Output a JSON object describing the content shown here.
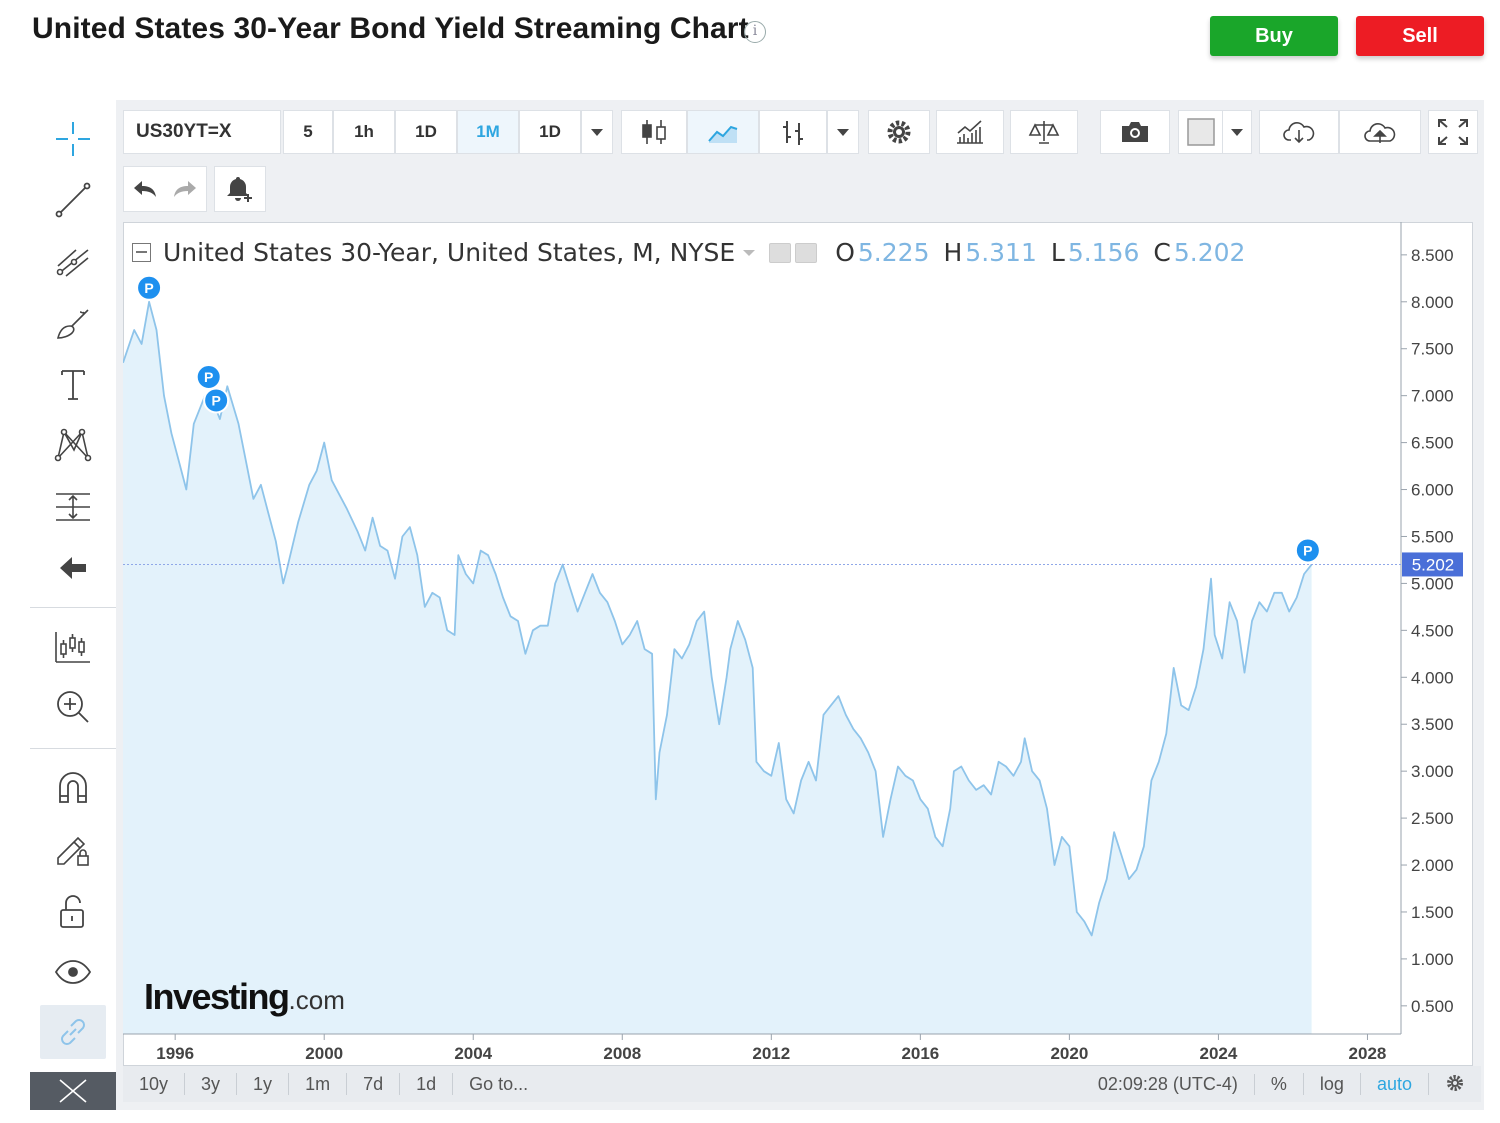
{
  "header": {
    "title": "United States 30-Year Bond Yield Streaming Chart",
    "info_icon": "i",
    "buy_label": "Buy",
    "sell_label": "Sell"
  },
  "colors": {
    "buy": "#1aa62a",
    "sell": "#ed1c24",
    "accent": "#2ea6e0",
    "series_line": "#8ec4ea",
    "series_fill": "#e3f2fb",
    "price_badge": "#4a6fd8",
    "marker": "#1e90ef"
  },
  "left_tools": [
    "crosshair-icon",
    "trend-line-icon",
    "fib-icon",
    "brush-icon",
    "text-icon",
    "pattern-icon",
    "measure-icon",
    "arrow-left-icon",
    "indicators-icon",
    "zoom-in-icon",
    "magnet-icon",
    "lock-drawing-icon",
    "unlock-icon",
    "eye-icon",
    "link-icon"
  ],
  "toolbar": {
    "symbol": "US30YT=X",
    "intervals": [
      "5",
      "1h",
      "1D",
      "1M",
      "1D"
    ],
    "active_interval": "1M"
  },
  "legend": {
    "name": "United States 30-Year, United States, M, NYSE",
    "o_label": "O",
    "o_value": "5.225",
    "h_label": "H",
    "h_value": "5.311",
    "l_label": "L",
    "l_value": "5.156",
    "c_label": "C",
    "c_value": "5.202"
  },
  "watermark": {
    "brand": "Investing",
    "domain": ".com"
  },
  "bottom_bar": {
    "ranges": [
      "10y",
      "3y",
      "1y",
      "1m",
      "7d",
      "1d"
    ],
    "goto": "Go to...",
    "time": "02:09:28 (UTC-4)",
    "percent": "%",
    "log": "log",
    "auto": "auto"
  },
  "chart_data": {
    "type": "area",
    "series": [
      {
        "name": "United States 30-Year",
        "points": [
          [
            1994.6,
            7.35
          ],
          [
            1994.9,
            7.7
          ],
          [
            1995.1,
            7.55
          ],
          [
            1995.3,
            8.0
          ],
          [
            1995.5,
            7.7
          ],
          [
            1995.7,
            7.0
          ],
          [
            1995.9,
            6.6
          ],
          [
            1996.1,
            6.3
          ],
          [
            1996.3,
            6.0
          ],
          [
            1996.5,
            6.7
          ],
          [
            1996.8,
            7.0
          ],
          [
            1997.0,
            6.95
          ],
          [
            1997.2,
            6.75
          ],
          [
            1997.4,
            7.1
          ],
          [
            1997.7,
            6.7
          ],
          [
            1997.9,
            6.3
          ],
          [
            1998.1,
            5.9
          ],
          [
            1998.3,
            6.05
          ],
          [
            1998.5,
            5.75
          ],
          [
            1998.7,
            5.45
          ],
          [
            1998.9,
            5.0
          ],
          [
            1999.0,
            5.15
          ],
          [
            1999.3,
            5.65
          ],
          [
            1999.6,
            6.05
          ],
          [
            1999.8,
            6.2
          ],
          [
            2000.0,
            6.5
          ],
          [
            2000.2,
            6.1
          ],
          [
            2000.4,
            5.95
          ],
          [
            2000.6,
            5.8
          ],
          [
            2000.9,
            5.55
          ],
          [
            2001.1,
            5.35
          ],
          [
            2001.3,
            5.7
          ],
          [
            2001.5,
            5.4
          ],
          [
            2001.7,
            5.35
          ],
          [
            2001.9,
            5.05
          ],
          [
            2002.1,
            5.5
          ],
          [
            2002.3,
            5.6
          ],
          [
            2002.5,
            5.3
          ],
          [
            2002.7,
            4.75
          ],
          [
            2002.9,
            4.9
          ],
          [
            2003.1,
            4.85
          ],
          [
            2003.3,
            4.5
          ],
          [
            2003.5,
            4.45
          ],
          [
            2003.6,
            5.3
          ],
          [
            2003.8,
            5.1
          ],
          [
            2004.0,
            5.0
          ],
          [
            2004.2,
            5.35
          ],
          [
            2004.4,
            5.3
          ],
          [
            2004.6,
            5.1
          ],
          [
            2004.8,
            4.85
          ],
          [
            2005.0,
            4.65
          ],
          [
            2005.2,
            4.6
          ],
          [
            2005.4,
            4.25
          ],
          [
            2005.6,
            4.5
          ],
          [
            2005.8,
            4.55
          ],
          [
            2006.0,
            4.55
          ],
          [
            2006.2,
            5.0
          ],
          [
            2006.4,
            5.2
          ],
          [
            2006.6,
            4.95
          ],
          [
            2006.8,
            4.7
          ],
          [
            2007.0,
            4.9
          ],
          [
            2007.2,
            5.1
          ],
          [
            2007.4,
            4.9
          ],
          [
            2007.6,
            4.8
          ],
          [
            2007.8,
            4.6
          ],
          [
            2008.0,
            4.35
          ],
          [
            2008.2,
            4.45
          ],
          [
            2008.4,
            4.6
          ],
          [
            2008.6,
            4.3
          ],
          [
            2008.8,
            4.25
          ],
          [
            2008.9,
            2.7
          ],
          [
            2009.0,
            3.2
          ],
          [
            2009.2,
            3.6
          ],
          [
            2009.4,
            4.3
          ],
          [
            2009.6,
            4.2
          ],
          [
            2009.8,
            4.35
          ],
          [
            2010.0,
            4.6
          ],
          [
            2010.2,
            4.7
          ],
          [
            2010.4,
            4.0
          ],
          [
            2010.6,
            3.5
          ],
          [
            2010.8,
            4.0
          ],
          [
            2010.9,
            4.3
          ],
          [
            2011.1,
            4.6
          ],
          [
            2011.3,
            4.4
          ],
          [
            2011.5,
            4.1
          ],
          [
            2011.6,
            3.1
          ],
          [
            2011.8,
            3.0
          ],
          [
            2012.0,
            2.95
          ],
          [
            2012.2,
            3.3
          ],
          [
            2012.4,
            2.7
          ],
          [
            2012.6,
            2.55
          ],
          [
            2012.8,
            2.9
          ],
          [
            2013.0,
            3.1
          ],
          [
            2013.2,
            2.9
          ],
          [
            2013.4,
            3.6
          ],
          [
            2013.6,
            3.7
          ],
          [
            2013.8,
            3.8
          ],
          [
            2014.0,
            3.6
          ],
          [
            2014.2,
            3.45
          ],
          [
            2014.4,
            3.35
          ],
          [
            2014.6,
            3.2
          ],
          [
            2014.8,
            3.0
          ],
          [
            2015.0,
            2.3
          ],
          [
            2015.2,
            2.7
          ],
          [
            2015.4,
            3.05
          ],
          [
            2015.6,
            2.95
          ],
          [
            2015.8,
            2.9
          ],
          [
            2016.0,
            2.7
          ],
          [
            2016.2,
            2.6
          ],
          [
            2016.4,
            2.3
          ],
          [
            2016.6,
            2.2
          ],
          [
            2016.8,
            2.6
          ],
          [
            2016.9,
            3.0
          ],
          [
            2017.1,
            3.05
          ],
          [
            2017.3,
            2.9
          ],
          [
            2017.5,
            2.8
          ],
          [
            2017.7,
            2.85
          ],
          [
            2017.9,
            2.75
          ],
          [
            2018.1,
            3.1
          ],
          [
            2018.3,
            3.05
          ],
          [
            2018.5,
            2.95
          ],
          [
            2018.7,
            3.1
          ],
          [
            2018.8,
            3.35
          ],
          [
            2019.0,
            3.0
          ],
          [
            2019.2,
            2.9
          ],
          [
            2019.4,
            2.6
          ],
          [
            2019.6,
            2.0
          ],
          [
            2019.8,
            2.3
          ],
          [
            2020.0,
            2.2
          ],
          [
            2020.2,
            1.5
          ],
          [
            2020.4,
            1.4
          ],
          [
            2020.6,
            1.25
          ],
          [
            2020.8,
            1.6
          ],
          [
            2021.0,
            1.85
          ],
          [
            2021.2,
            2.35
          ],
          [
            2021.4,
            2.1
          ],
          [
            2021.6,
            1.85
          ],
          [
            2021.8,
            1.95
          ],
          [
            2022.0,
            2.2
          ],
          [
            2022.2,
            2.9
          ],
          [
            2022.4,
            3.1
          ],
          [
            2022.6,
            3.4
          ],
          [
            2022.8,
            4.1
          ],
          [
            2023.0,
            3.7
          ],
          [
            2023.2,
            3.65
          ],
          [
            2023.4,
            3.9
          ],
          [
            2023.6,
            4.3
          ],
          [
            2023.8,
            5.05
          ],
          [
            2023.9,
            4.45
          ],
          [
            2024.1,
            4.2
          ],
          [
            2024.3,
            4.8
          ],
          [
            2024.5,
            4.6
          ],
          [
            2024.7,
            4.05
          ],
          [
            2024.9,
            4.6
          ],
          [
            2025.1,
            4.8
          ],
          [
            2025.3,
            4.7
          ],
          [
            2025.5,
            4.9
          ],
          [
            2025.7,
            4.9
          ],
          [
            2025.9,
            4.7
          ],
          [
            2026.1,
            4.85
          ],
          [
            2026.3,
            5.1
          ],
          [
            2026.5,
            5.2
          ]
        ]
      }
    ],
    "markers": [
      {
        "label": "P",
        "x": 1995.3,
        "y": 8.0
      },
      {
        "label": "P",
        "x": 1996.9,
        "y": 7.05
      },
      {
        "label": "P",
        "x": 1997.1,
        "y": 6.8
      },
      {
        "label": "P",
        "x": 2026.4,
        "y": 5.202
      }
    ],
    "last_value": "5.202",
    "last_value_num": 5.202,
    "xlim": [
      1994.6,
      2028.9
    ],
    "ylim": [
      0.2,
      8.85
    ],
    "x_ticks": [
      "1996",
      "2000",
      "2004",
      "2008",
      "2012",
      "2016",
      "2020",
      "2024",
      "2028"
    ],
    "y_ticks": [
      "0.500",
      "1.000",
      "1.500",
      "2.000",
      "2.500",
      "3.000",
      "3.500",
      "4.000",
      "4.500",
      "5.000",
      "5.500",
      "6.000",
      "6.500",
      "7.000",
      "7.500",
      "8.000",
      "8.500"
    ],
    "grid": false
  }
}
